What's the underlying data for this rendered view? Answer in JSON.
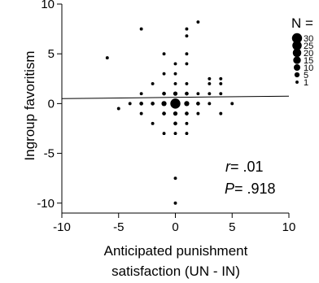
{
  "chart_data": {
    "type": "scatter",
    "title": "",
    "xlabel": [
      "Anticipated punishment",
      "satisfaction (UN - IN)"
    ],
    "ylabel": "Ingroup favoritism",
    "xlim": [
      -10,
      10
    ],
    "ylim": [
      -11,
      10
    ],
    "xticks": [
      -10,
      -5,
      0,
      5,
      10
    ],
    "yticks": [
      -10,
      -5,
      0,
      5,
      10
    ],
    "grid": false,
    "points": [
      {
        "x": -3,
        "y": 7.5,
        "n": 1
      },
      {
        "x": 2,
        "y": 8.2,
        "n": 1
      },
      {
        "x": 1,
        "y": 7.5,
        "n": 1
      },
      {
        "x": 1,
        "y": 6.8,
        "n": 1
      },
      {
        "x": -6,
        "y": 4.6,
        "n": 1
      },
      {
        "x": -1,
        "y": 5,
        "n": 1
      },
      {
        "x": 1,
        "y": 5,
        "n": 1
      },
      {
        "x": 0,
        "y": 4,
        "n": 1
      },
      {
        "x": 1,
        "y": 4,
        "n": 1
      },
      {
        "x": -1,
        "y": 3,
        "n": 1
      },
      {
        "x": 0,
        "y": 3,
        "n": 1
      },
      {
        "x": -2,
        "y": 2,
        "n": 1
      },
      {
        "x": 0,
        "y": 2,
        "n": 1
      },
      {
        "x": 1,
        "y": 2,
        "n": 1
      },
      {
        "x": 3,
        "y": 2.5,
        "n": 1
      },
      {
        "x": 4,
        "y": 2.5,
        "n": 1
      },
      {
        "x": 3,
        "y": 2,
        "n": 1
      },
      {
        "x": 4,
        "y": 2,
        "n": 1
      },
      {
        "x": -3,
        "y": 1,
        "n": 1
      },
      {
        "x": -1,
        "y": 1,
        "n": 2
      },
      {
        "x": 0,
        "y": 1,
        "n": 3
      },
      {
        "x": 1,
        "y": 1,
        "n": 2
      },
      {
        "x": 2,
        "y": 1,
        "n": 1
      },
      {
        "x": 3,
        "y": 1,
        "n": 1
      },
      {
        "x": 4,
        "y": 1,
        "n": 1
      },
      {
        "x": -4,
        "y": 0,
        "n": 1
      },
      {
        "x": -3,
        "y": 0,
        "n": 2
      },
      {
        "x": -2,
        "y": 0,
        "n": 2
      },
      {
        "x": -1,
        "y": 0,
        "n": 5
      },
      {
        "x": 0,
        "y": 0,
        "n": 30
      },
      {
        "x": 1,
        "y": 0,
        "n": 5
      },
      {
        "x": 2,
        "y": 0,
        "n": 2
      },
      {
        "x": 3,
        "y": 0,
        "n": 1
      },
      {
        "x": 5,
        "y": 0,
        "n": 1
      },
      {
        "x": -5,
        "y": -0.5,
        "n": 1
      },
      {
        "x": -3,
        "y": -1,
        "n": 1
      },
      {
        "x": -1,
        "y": -1,
        "n": 2
      },
      {
        "x": 0,
        "y": -1,
        "n": 3
      },
      {
        "x": 1,
        "y": -1,
        "n": 2
      },
      {
        "x": 2,
        "y": -1,
        "n": 1
      },
      {
        "x": 4,
        "y": -1,
        "n": 1
      },
      {
        "x": -2,
        "y": -2,
        "n": 1
      },
      {
        "x": 0,
        "y": -2,
        "n": 2
      },
      {
        "x": 1,
        "y": -2,
        "n": 1
      },
      {
        "x": -1,
        "y": -3,
        "n": 1
      },
      {
        "x": 0,
        "y": -3,
        "n": 1
      },
      {
        "x": 1,
        "y": -3,
        "n": 1
      },
      {
        "x": 0,
        "y": -7.5,
        "n": 1
      },
      {
        "x": 0,
        "y": -10,
        "n": 1
      }
    ],
    "regression_line": {
      "x": [
        -10,
        10
      ],
      "y": [
        0.5,
        0.75
      ]
    },
    "annotations": {
      "r_label": "r",
      "r_value": "= .01",
      "p_label": "P",
      "p_value": "= .918"
    },
    "legend": {
      "title": "N =",
      "position": "top-right",
      "entries": [
        {
          "label": "30",
          "n": 30
        },
        {
          "label": "25",
          "n": 25
        },
        {
          "label": "20",
          "n": 20
        },
        {
          "label": "15",
          "n": 15
        },
        {
          "label": "10",
          "n": 10
        },
        {
          "label": "5",
          "n": 5
        },
        {
          "label": "1",
          "n": 1
        }
      ]
    }
  }
}
